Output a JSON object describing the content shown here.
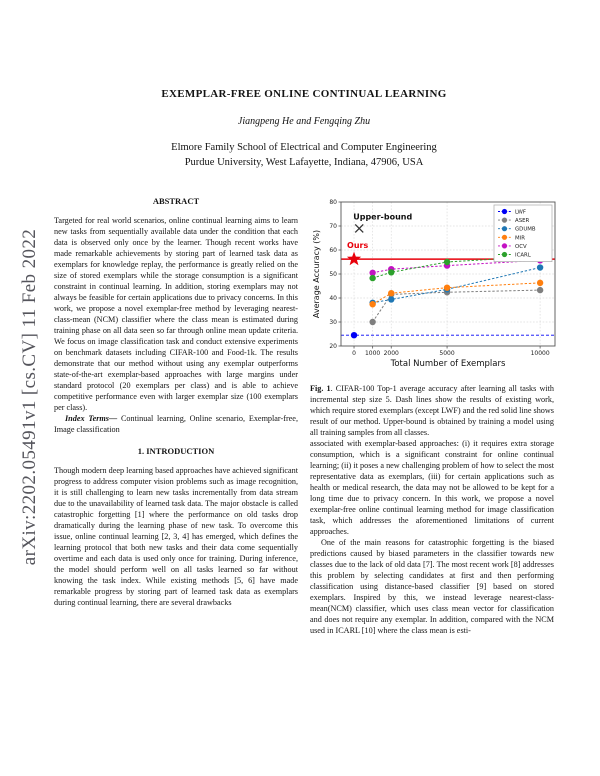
{
  "arxiv_sidebar": "arXiv:2202.05491v1  [cs.CV]  11 Feb 2022",
  "header": {
    "title": "EXEMPLAR-FREE ONLINE CONTINUAL LEARNING",
    "authors": "Jiangpeng He and Fengqing Zhu",
    "affiliation_line1": "Elmore Family School of Electrical and Computer Engineering",
    "affiliation_line2": "Purdue University, West Lafayette, Indiana, 47906, USA"
  },
  "abstract": {
    "heading": "ABSTRACT",
    "body": "Targeted for real world scenarios, online continual learning aims to learn new tasks from sequentially available data under the condition that each data is observed only once by the learner. Though recent works have made remarkable achievements by storing part of learned task data as exemplars for knowledge replay, the performance is greatly relied on the size of stored exemplars while the storage consumption is a significant constraint in continual learning. In addition, storing exemplars may not always be feasible for certain applications due to privacy concerns. In this work, we propose a novel exemplar-free method by leveraging nearest-class-mean (NCM) classifier where the class mean is estimated during training phase on all data seen so far through online mean update criteria. We focus on image classification task and conduct extensive experiments on benchmark datasets including CIFAR-100 and Food-1k. The results demonstrate that our method without using any exemplar outperforms state-of-the-art exemplar-based approaches with large margins under standard protocol (20 exemplars per class) and is able to achieve competitive performance even with larger exemplar size (100 exemplars per class).",
    "index_terms_label": "Index Terms—",
    "index_terms": " Continual learning, Online scenario, Exemplar-free, Image classification"
  },
  "introduction": {
    "heading": "1.  INTRODUCTION",
    "para1": "Though modern deep learning based approaches have achieved significant progress to address computer vision problems such as image recognition, it is still challenging to learn new tasks incrementally from data stream due to the unavailability of learned task data. The major obstacle is called catastrophic forgetting [1] where the performance on old tasks drop dramatically during the learning phase of new task. To overcome this issue, online continual learning [2, 3, 4] has emerged, which defines the learning protocol that both new tasks and their data come sequentially overtime and each data is used only once for training. During inference, the model should perform well on all tasks learned so far without knowing the task index. While existing methods [5, 6] have made remarkable progress by storing part of learned task data as exemplars during continual learning, there are several drawbacks"
  },
  "figure": {
    "caption_label": "Fig. 1",
    "caption_text": ". CIFAR-100 Top-1 average accuracy after learning all tasks with incremental step size 5. Dash lines show the results of existing work, which require stored exemplars (except LWF) and the red solid line shows result of our method. Upper-bound is obtained by training a model using all training samples from all classes."
  },
  "right_column": {
    "para1": "associated with exemplar-based approaches: (i) it requires extra storage consumption, which is a significant constraint for online continual learning; (ii) it poses a new challenging problem of how to select the most representative data as exemplars, (iii) for certain applications such as health or medical research, the data may not be allowed to be kept for a long time due to privacy concern. In this work, we propose a novel exemplar-free online continual learning method for image classification task, which addresses the aforementioned limitations of current approaches.",
    "para2": "One of the main reasons for catastrophic forgetting is the biased predictions caused by biased parameters in the classifier towards new classes due to the lack of old data [7]. The most recent work [8] addresses this problem by selecting candidates at first and then performing classification using distance-based classifier [9] based on stored exemplars. Inspired by this, we instead leverage nearest-class-mean(NCM) classifier, which uses class mean vector for classification and does not require any exemplar. In addition, compared with the NCM used in ICARL [10] where the class mean is esti-"
  },
  "chart_data": {
    "type": "line",
    "title": "",
    "xlabel": "Total Number of Exemplars",
    "ylabel": "Average Accuracy (%)",
    "xlim": [
      -700,
      10800
    ],
    "ylim": [
      20,
      80
    ],
    "xticks": [
      0,
      1000,
      2000,
      5000,
      10000
    ],
    "yticks": [
      20,
      30,
      40,
      50,
      60,
      70,
      80
    ],
    "grid": true,
    "legend_position": "upper right",
    "legend": [
      "LWF",
      "ASER",
      "GDUMB",
      "MIR",
      "OCV",
      "ICARL"
    ],
    "hlines": [
      {
        "y": 56.2,
        "color": "#e8000b",
        "style": "solid",
        "series": "Ours"
      },
      {
        "y": 24.5,
        "color": "#0000f5",
        "style": "dashed",
        "series": "LWF"
      }
    ],
    "annotations": [
      {
        "label": "Upper-bound",
        "x": 280,
        "y": 69,
        "marker": "x",
        "color": "#333333",
        "label_color": "#111111"
      },
      {
        "label": "Ours",
        "x": 0,
        "y": 56.2,
        "marker": "star",
        "color": "#e8000b",
        "label_color": "#e8000b"
      }
    ],
    "series": [
      {
        "name": "LWF",
        "color": "#0000f5",
        "x": [
          0
        ],
        "y": [
          24.5
        ]
      },
      {
        "name": "ASER",
        "color": "#7f7f7f",
        "x": [
          1000,
          2000,
          5000,
          10000
        ],
        "y": [
          30.0,
          41.5,
          42.4,
          43.3
        ]
      },
      {
        "name": "GDUMB",
        "color": "#1f77b4",
        "x": [
          1000,
          2000,
          5000,
          10000
        ],
        "y": [
          38.0,
          39.4,
          43.6,
          52.7
        ]
      },
      {
        "name": "MIR",
        "color": "#ff7f0e",
        "x": [
          1000,
          2000,
          5000,
          10000
        ],
        "y": [
          37.4,
          42.0,
          44.3,
          46.3
        ]
      },
      {
        "name": "OCV",
        "color": "#c312c3",
        "x": [
          1000,
          2000,
          5000,
          10000
        ],
        "y": [
          50.5,
          52.0,
          53.5,
          55.7
        ]
      },
      {
        "name": "ICARL",
        "color": "#2ca02c",
        "x": [
          1000,
          2000,
          5000,
          10000
        ],
        "y": [
          48.3,
          50.7,
          55.0,
          57.3
        ]
      }
    ]
  }
}
